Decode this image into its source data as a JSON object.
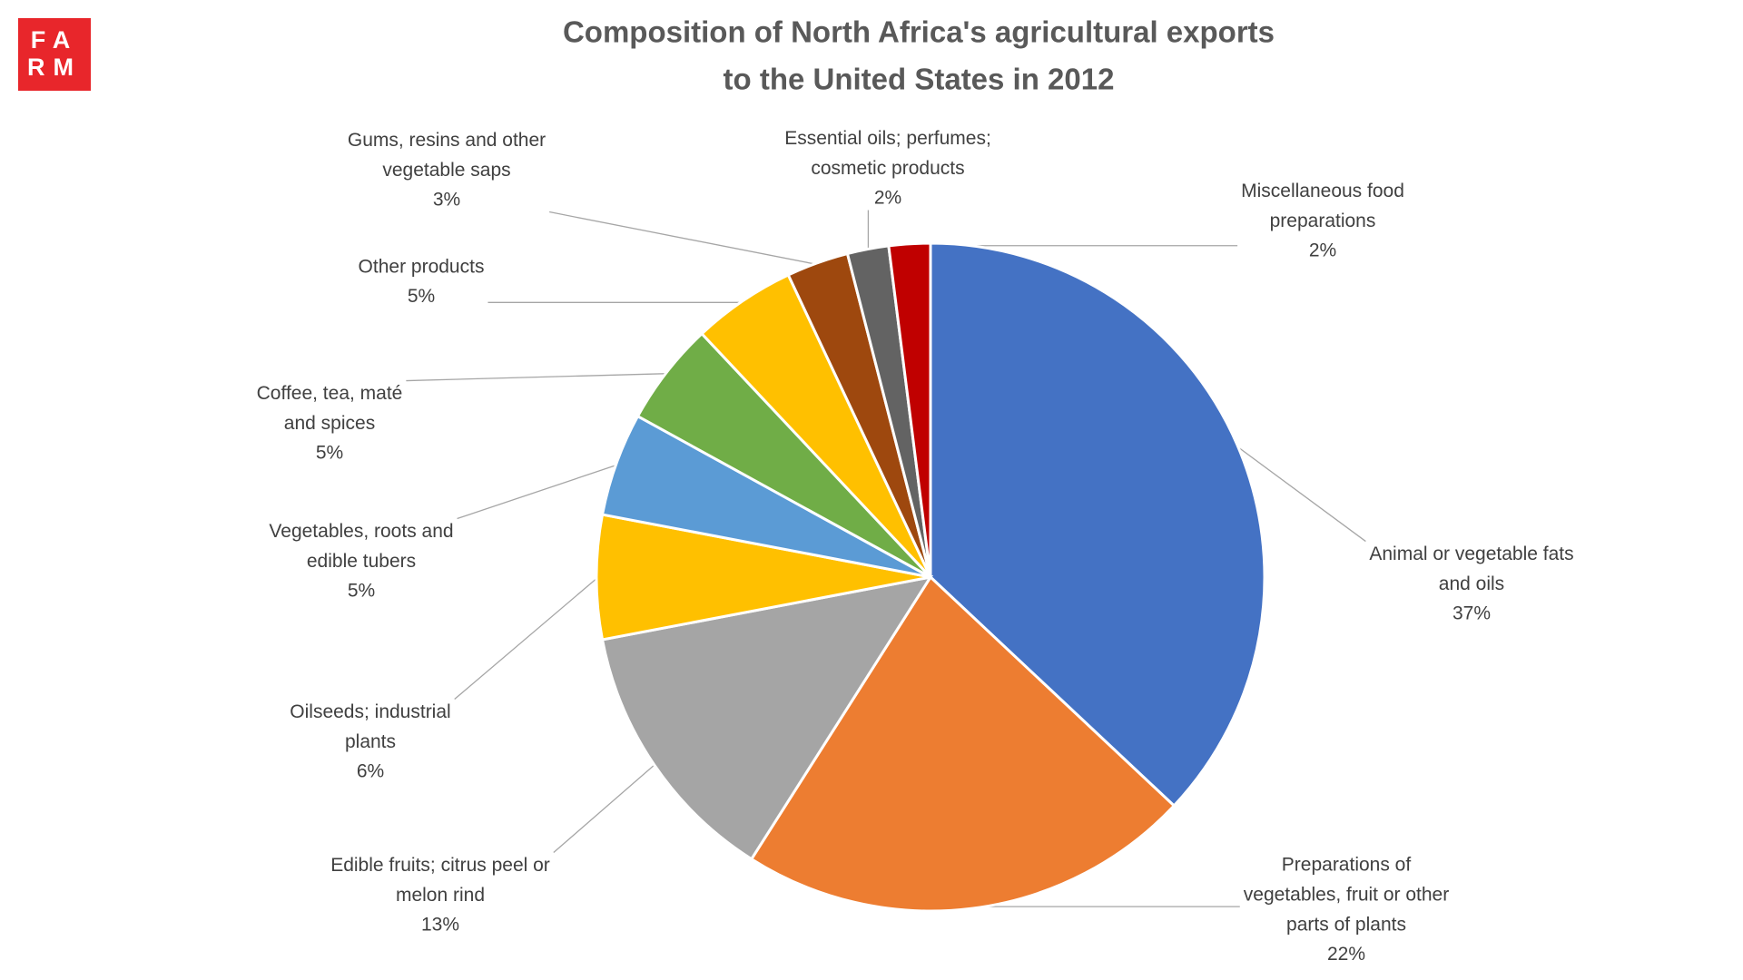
{
  "logo": [
    "FA",
    "RM"
  ],
  "chart_data": {
    "type": "pie",
    "title": [
      "Composition of North Africa's agricultural exports",
      "to the United States in 2012"
    ],
    "categories": [
      "Animal or vegetable fats\nand oils",
      "Preparations  of\nvegetables, fruit or other\nparts of plants",
      "Edible fruits; citrus peel or\nmelon rind",
      "Oilseeds; industrial\nplants",
      "Vegetables, roots and\nedible tubers",
      "Coffee, tea, maté\nand spices",
      "Other products",
      "Gums, resins and other\nvegetable saps",
      "Essential oils; perfumes;\ncosmetic products",
      "Miscellaneous  food\npreparations"
    ],
    "values": [
      37,
      22,
      13,
      6,
      5,
      5,
      5,
      3,
      2,
      2
    ],
    "value_labels": [
      "37%",
      "22%",
      "13%",
      "6%",
      "5%",
      "5%",
      "5%",
      "3%",
      "2%",
      "2%"
    ],
    "colors": [
      "#4472c4",
      "#ed7d31",
      "#a5a5a5",
      "#ffc000",
      "#5b9bd5",
      "#70ad47",
      "#ffc000",
      "#9e480e",
      "#636363",
      "#c00000"
    ]
  }
}
